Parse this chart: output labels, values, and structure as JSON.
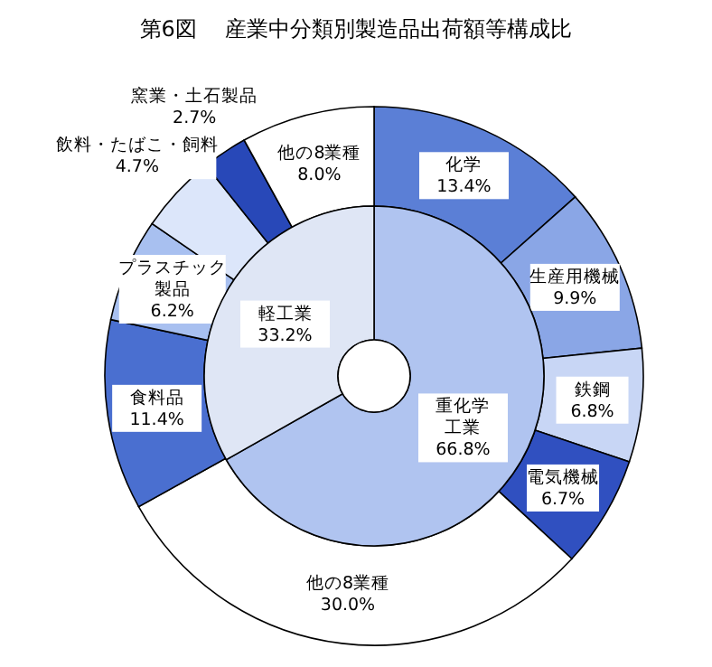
{
  "chart_data": [
    {
      "type": "donut",
      "title": "第6図　 産業中分類別製造品出荷額等構成比",
      "data_labels": true,
      "categories": [
        "化学",
        "生産用機械",
        "鉄鋼",
        "電気機械",
        "他の8業種",
        "食料品",
        "プラスチック製品",
        "飲料・たばこ・飼料",
        "窯業・土石製品",
        "他の8業種"
      ],
      "values": [
        13.4,
        9.9,
        6.8,
        6.7,
        30.0,
        11.4,
        6.2,
        4.7,
        2.7,
        8.0
      ],
      "value_labels": [
        "13.4%",
        "9.9%",
        "6.8%",
        "6.7%",
        "30.0%",
        "11.4%",
        "6.2%",
        "4.7%",
        "2.7%",
        "8.0%"
      ],
      "colors": [
        "#5b7fd6",
        "#8aa6e6",
        "#c8d6f5",
        "#3050c0",
        "#ffffff",
        "#4a6fd0",
        "#a8c0f0",
        "#dce6fa",
        "#2848b8",
        "#ffffff"
      ]
    },
    {
      "type": "donut",
      "data_labels": true,
      "categories": [
        "重化学工業",
        "軽工業"
      ],
      "values": [
        66.8,
        33.2
      ],
      "value_labels": [
        "66.8%",
        "33.2%"
      ],
      "colors": [
        "#b0c4f0",
        "#dfe6f5"
      ]
    }
  ]
}
